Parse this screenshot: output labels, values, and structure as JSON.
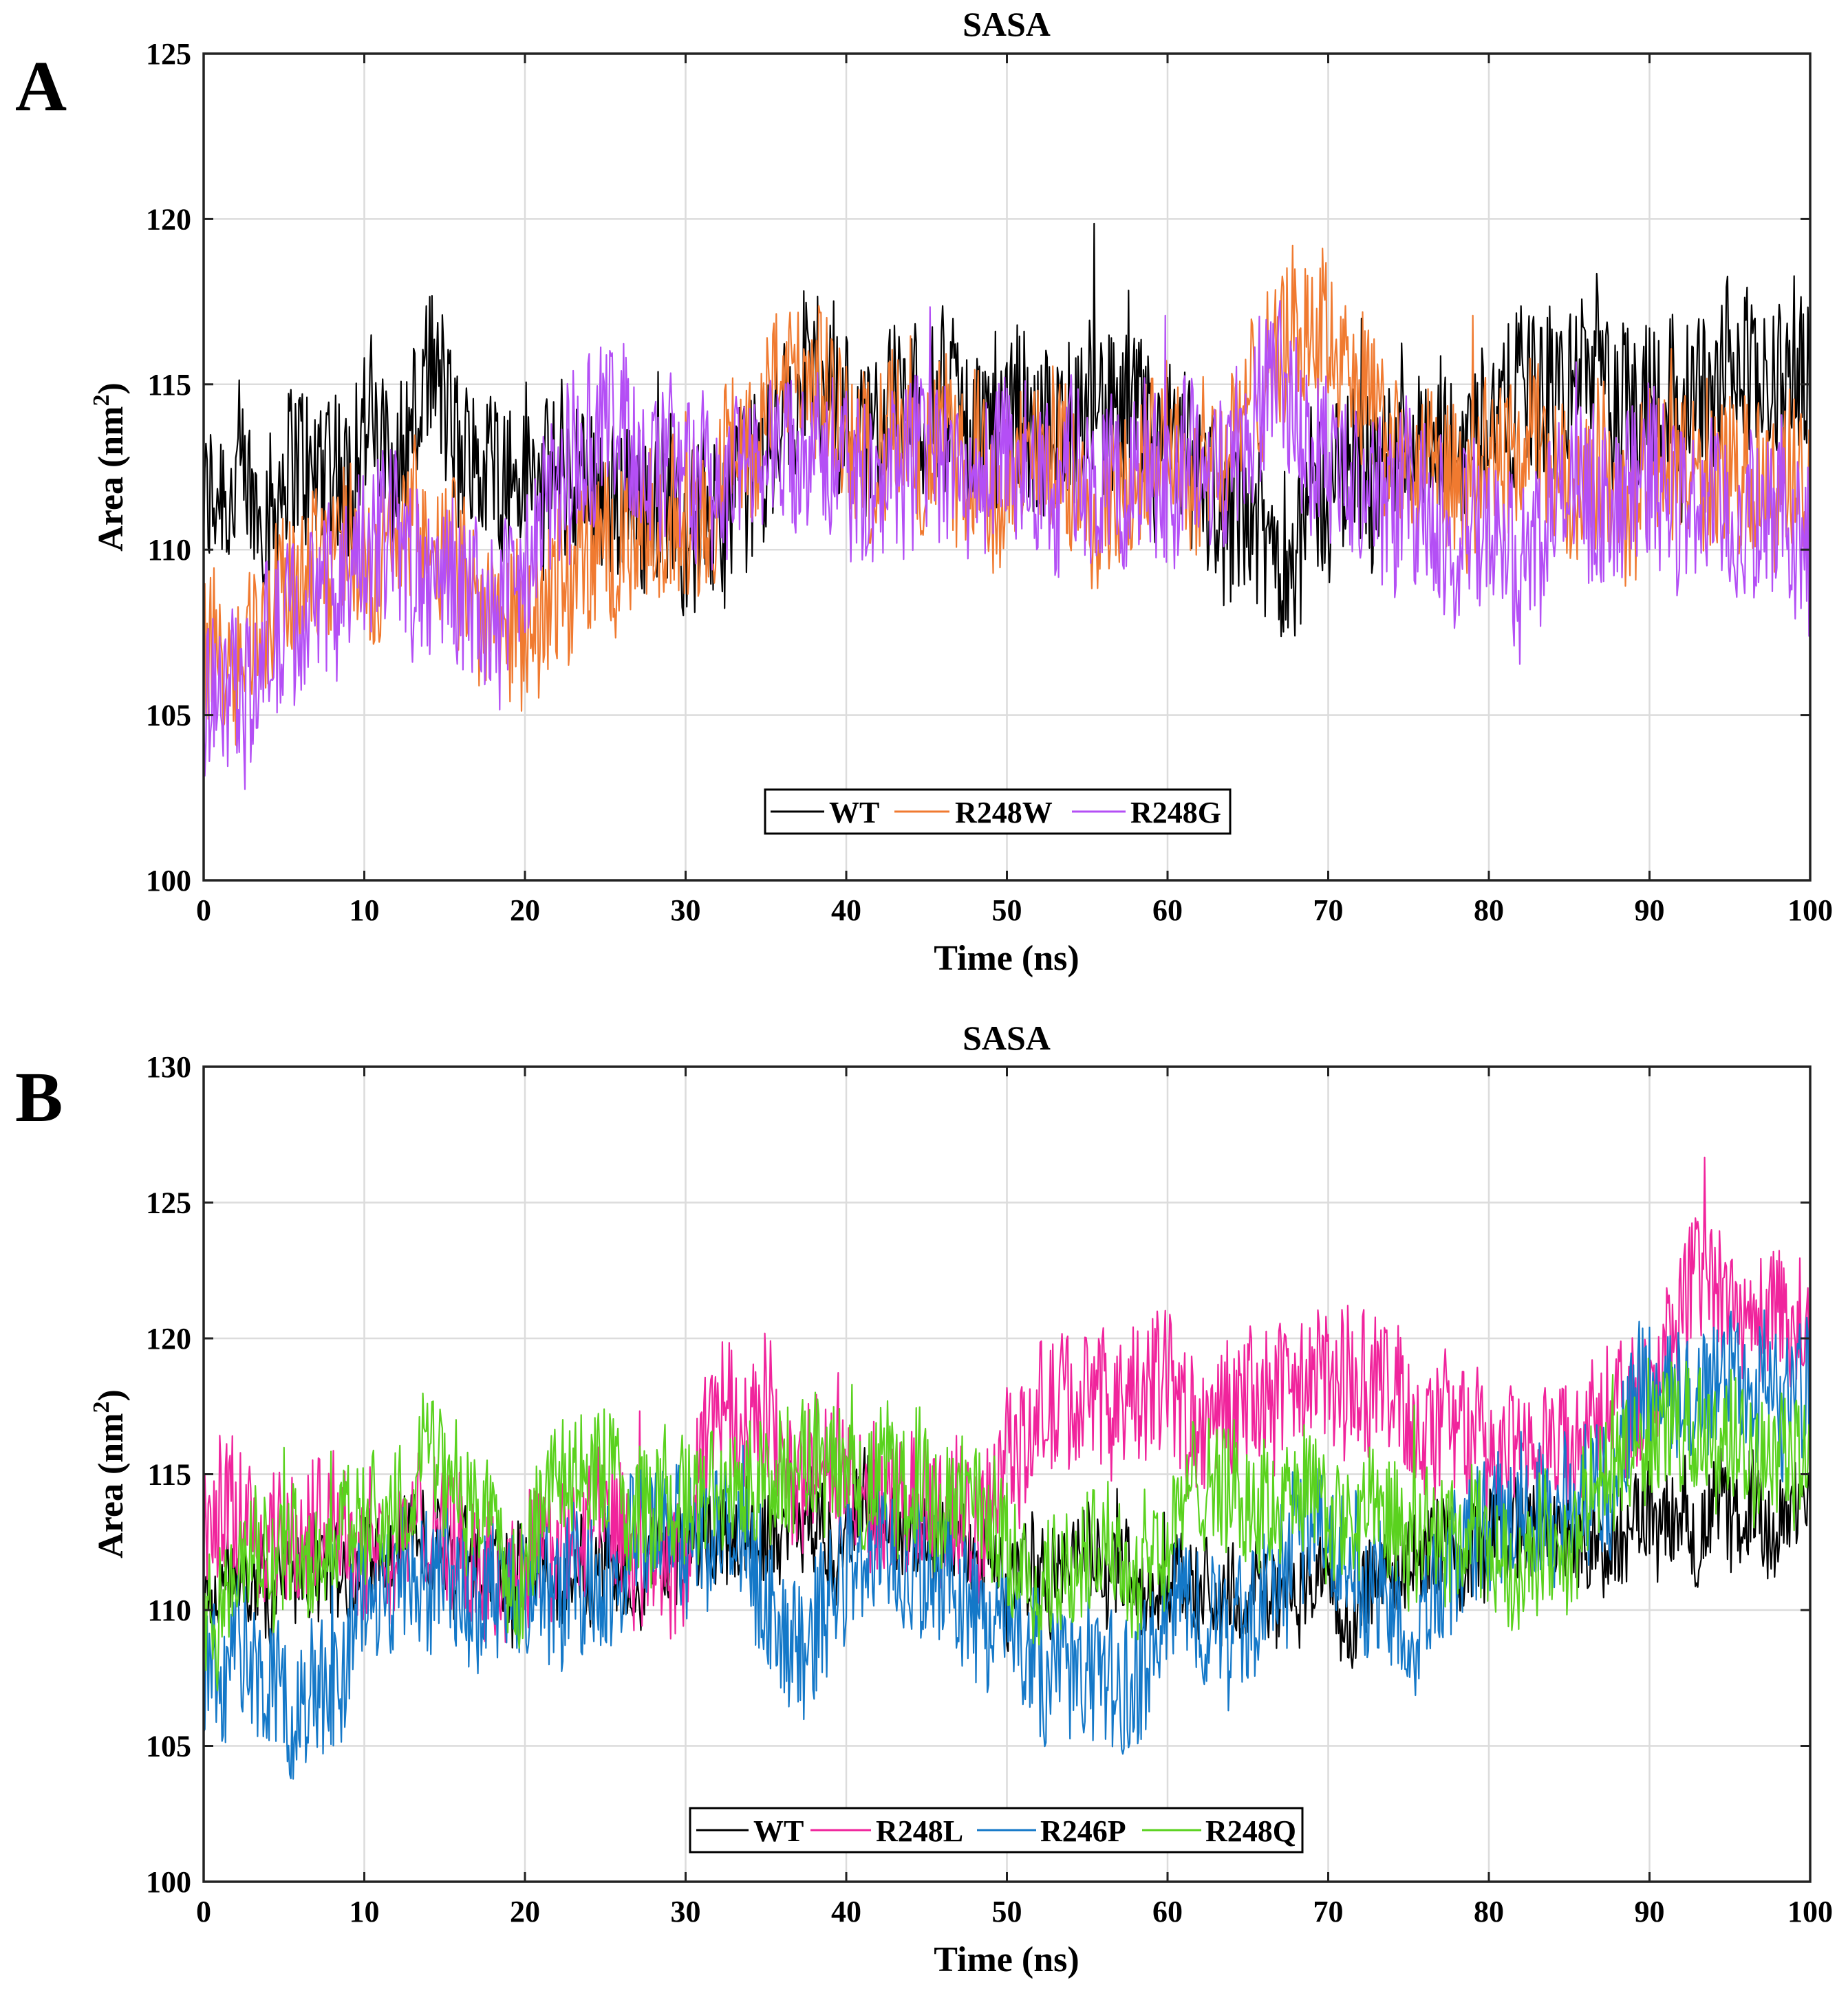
{
  "chart_data": [
    {
      "panel": "A",
      "type": "line",
      "title": "SASA",
      "xlabel": "Time (ns)",
      "ylabel": "Area (nm",
      "ylabel_sup": "2",
      "ylabel_close": ")",
      "xlim": [
        0,
        100
      ],
      "ylim": [
        100,
        125
      ],
      "xticks": [
        "0",
        "10",
        "20",
        "30",
        "40",
        "50",
        "60",
        "70",
        "80",
        "90",
        "100"
      ],
      "yticks": [
        "100",
        "105",
        "110",
        "115",
        "120",
        "125"
      ],
      "grid": true,
      "legend_location": "bottom-center",
      "series": [
        {
          "name": "WT",
          "color": "#000000",
          "x": [
            0,
            3,
            6,
            9,
            10,
            12,
            14,
            16,
            18,
            20,
            22,
            25,
            28,
            30,
            32,
            35,
            37.5,
            40,
            43,
            45,
            48,
            50,
            53,
            55,
            58,
            60,
            62,
            65,
            66,
            68,
            70,
            73,
            76,
            78,
            80,
            83,
            85,
            88,
            90,
            93,
            95,
            98,
            100
          ],
          "y": [
            111,
            111.5,
            112,
            112.5,
            114,
            112.5,
            115,
            112,
            112.5,
            113,
            112,
            112,
            111.5,
            111,
            111,
            113,
            116,
            114,
            114,
            114.5,
            114,
            114,
            113.5,
            113.5,
            113,
            112.5,
            111.5,
            110.5,
            109.5,
            110.5,
            112,
            113,
            113,
            113.5,
            114,
            114.5,
            115,
            115,
            115,
            115,
            115,
            115,
            115
          ]
        },
        {
          "name": "R248W",
          "color": "#f07a30",
          "x": [
            0,
            3,
            6,
            9,
            10,
            12,
            14,
            16,
            18,
            20,
            22,
            25,
            28,
            30,
            32,
            35,
            37.5,
            40,
            43,
            45,
            48,
            50,
            53,
            55,
            58,
            60,
            62,
            65,
            66,
            68,
            70,
            73,
            76,
            78,
            80,
            83,
            85,
            88,
            90,
            93,
            95,
            98,
            100
          ],
          "y": [
            107,
            108,
            109.5,
            110,
            108.5,
            110.5,
            110,
            109,
            108,
            107.5,
            109,
            110,
            110,
            111,
            112,
            114.5,
            115,
            113.5,
            113,
            113,
            112.5,
            112,
            112.5,
            112,
            112.5,
            113,
            113,
            114,
            115,
            116.5,
            117.5,
            114,
            112,
            111.5,
            112,
            112.5,
            112.5,
            112,
            112,
            112.5,
            112,
            112,
            112
          ]
        },
        {
          "name": "R248G",
          "color": "#b44ff5",
          "x": [
            0,
            3,
            6,
            9,
            10,
            12,
            14,
            16,
            18,
            20,
            22,
            25,
            28,
            30,
            32,
            35,
            37.5,
            40,
            43,
            45,
            48,
            50,
            53,
            55,
            58,
            60,
            62,
            65,
            66,
            68,
            70,
            73,
            76,
            78,
            80,
            83,
            85,
            88,
            90,
            93,
            95,
            98,
            100
          ],
          "y": [
            106,
            106,
            107.5,
            109.5,
            110,
            110,
            109,
            109,
            108,
            109,
            112,
            113.5,
            113,
            112.5,
            112,
            113,
            113.5,
            113,
            113,
            112.5,
            112,
            112.5,
            112,
            112,
            112,
            112,
            112,
            113,
            115,
            114,
            113,
            112,
            111.5,
            110,
            110.5,
            111,
            111.5,
            112,
            112,
            111.5,
            111,
            110.5,
            110
          ]
        }
      ]
    },
    {
      "panel": "B",
      "type": "line",
      "title": "SASA",
      "xlabel": "Time (ns)",
      "ylabel": "Area (nm",
      "ylabel_sup": "2",
      "ylabel_close": ")",
      "xlim": [
        0,
        100
      ],
      "ylim": [
        100,
        130
      ],
      "xticks": [
        "0",
        "10",
        "20",
        "30",
        "40",
        "50",
        "60",
        "70",
        "80",
        "90",
        "100"
      ],
      "yticks": [
        "100",
        "105",
        "110",
        "115",
        "120",
        "125",
        "130"
      ],
      "grid": true,
      "legend_location": "bottom-center",
      "series": [
        {
          "name": "WT",
          "color": "#000000",
          "x": [
            0,
            3,
            6,
            9,
            10,
            12,
            14,
            16,
            18,
            20,
            22,
            25,
            28,
            30,
            32,
            35,
            37.5,
            40,
            43,
            45,
            48,
            50,
            53,
            55,
            58,
            60,
            62,
            65,
            66,
            68,
            70,
            73,
            76,
            78,
            80,
            83,
            85,
            88,
            90,
            93,
            95,
            98,
            100
          ],
          "y": [
            110,
            111,
            111.5,
            111.5,
            112,
            112,
            113,
            112.5,
            112,
            111.5,
            111.5,
            112,
            112,
            112,
            112.5,
            113,
            114,
            113,
            112.5,
            113,
            112.5,
            111,
            112,
            112,
            111,
            111,
            111,
            111,
            110.5,
            110.5,
            110.5,
            111,
            112,
            112.5,
            113,
            113,
            112.5,
            112.5,
            113,
            113,
            113.5,
            113.5,
            113
          ]
        },
        {
          "name": "R248L",
          "color": "#f0249c",
          "x": [
            0,
            3,
            6,
            9,
            10,
            12,
            14,
            16,
            18,
            20,
            22,
            25,
            28,
            30,
            32,
            35,
            37.5,
            40,
            43,
            45,
            48,
            50,
            53,
            55,
            58,
            60,
            62,
            65,
            66,
            68,
            70,
            73,
            76,
            78,
            80,
            83,
            85,
            88,
            90,
            93,
            95,
            98,
            100
          ],
          "y": [
            113,
            114,
            113,
            113,
            113,
            112.5,
            113,
            112,
            112,
            112,
            112.5,
            113,
            111,
            111,
            118,
            117,
            115,
            114.5,
            113.5,
            114,
            113,
            116,
            117,
            117.5,
            118,
            118,
            116.5,
            118,
            118,
            118,
            118.5,
            118,
            117,
            117,
            116,
            116,
            116.5,
            118,
            119,
            122,
            121,
            120.5,
            120
          ]
        },
        {
          "name": "R246P",
          "color": "#1478c8",
          "x": [
            0,
            3,
            6,
            9,
            10,
            12,
            14,
            16,
            18,
            20,
            22,
            25,
            28,
            30,
            32,
            35,
            37.5,
            40,
            43,
            45,
            48,
            50,
            53,
            55,
            58,
            60,
            62,
            65,
            66,
            68,
            70,
            73,
            76,
            78,
            80,
            83,
            85,
            88,
            90,
            93,
            95,
            98,
            100
          ],
          "y": [
            108,
            108,
            106,
            108,
            110,
            111,
            111,
            110.5,
            111,
            111,
            111,
            111,
            113,
            114,
            113,
            111,
            108,
            112,
            112,
            111,
            110,
            109,
            108,
            108,
            107,
            110,
            110,
            110,
            111,
            113,
            113,
            111,
            110,
            112,
            113,
            114,
            114,
            116,
            117,
            118,
            119,
            118,
            118
          ]
        },
        {
          "name": "R248Q",
          "color": "#5ad21e",
          "x": [
            0,
            3,
            6,
            9,
            10,
            12,
            14,
            16,
            18,
            20,
            22,
            25,
            28,
            30,
            32,
            35,
            37.5,
            40,
            43,
            45,
            48,
            50,
            53,
            55,
            58,
            60,
            62,
            65,
            66,
            68,
            70,
            73,
            76,
            78,
            80,
            83,
            85,
            88,
            90,
            93,
            95,
            98,
            100
          ],
          "y": [
            110,
            112,
            112,
            113,
            113.5,
            114,
            116,
            114,
            112.5,
            112,
            115,
            115,
            114,
            114,
            114,
            115,
            115,
            115,
            114.5,
            114.5,
            113.5,
            112,
            112,
            112,
            112,
            113,
            114.5,
            114,
            114.5,
            115,
            113.5,
            113,
            112,
            112,
            112,
            112,
            113,
            115,
            116.5,
            116.5,
            116,
            116,
            116
          ]
        }
      ]
    }
  ]
}
